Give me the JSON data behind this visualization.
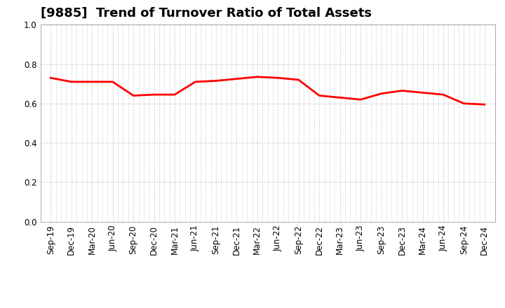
{
  "title": "[9885]  Trend of Turnover Ratio of Total Assets",
  "x_labels": [
    "Sep-19",
    "Dec-19",
    "Mar-20",
    "Jun-20",
    "Sep-20",
    "Dec-20",
    "Mar-21",
    "Jun-21",
    "Sep-21",
    "Dec-21",
    "Mar-22",
    "Jun-22",
    "Sep-22",
    "Dec-22",
    "Mar-23",
    "Jun-23",
    "Sep-23",
    "Dec-23",
    "Mar-24",
    "Jun-24",
    "Sep-24",
    "Dec-24"
  ],
  "y_values": [
    0.73,
    0.71,
    0.71,
    0.71,
    0.64,
    0.645,
    0.645,
    0.71,
    0.715,
    0.725,
    0.735,
    0.73,
    0.72,
    0.64,
    0.63,
    0.62,
    0.65,
    0.665,
    0.655,
    0.645,
    0.6,
    0.595
  ],
  "line_color": "#FF0000",
  "line_width": 2.0,
  "ylim": [
    0.0,
    1.0
  ],
  "yticks": [
    0.0,
    0.2,
    0.4,
    0.6,
    0.8,
    1.0
  ],
  "grid_color": "#bbbbbb",
  "grid_style": ":",
  "bg_color": "#ffffff",
  "plot_bg_color": "#ffffff",
  "title_fontsize": 13,
  "tick_fontsize": 8.5,
  "minor_per_major": 3
}
